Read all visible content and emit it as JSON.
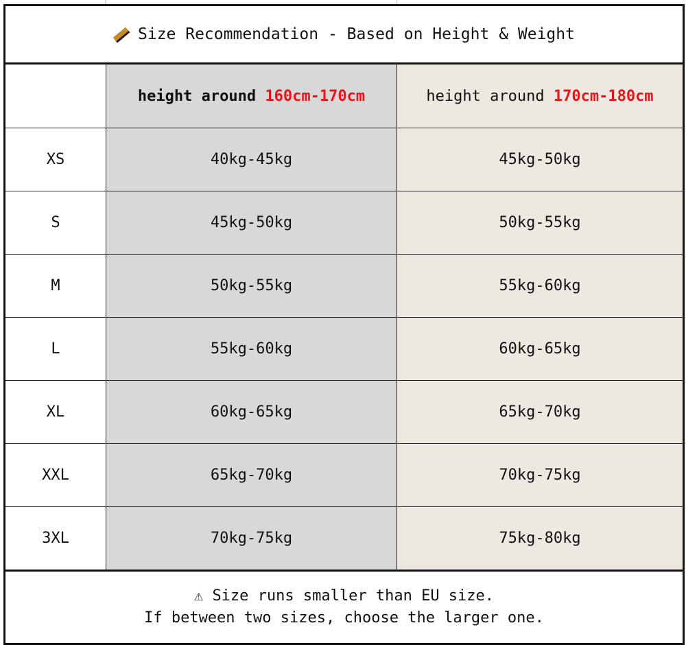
{
  "title": {
    "icon": "ruler-icon",
    "text": "Size Recommendation - Based on Height & Weight"
  },
  "columns": [
    {
      "prefix": "height around ",
      "range": "160cm-170cm",
      "background": "#d8d8d8"
    },
    {
      "prefix": "height around ",
      "range": "170cm-180cm",
      "background": "#ede9e1"
    }
  ],
  "accent_color": "#e8141a",
  "rows": [
    {
      "size": "XS",
      "a": "40kg-45kg",
      "b": "45kg-50kg"
    },
    {
      "size": "S",
      "a": "45kg-50kg",
      "b": "50kg-55kg"
    },
    {
      "size": "M",
      "a": "50kg-55kg",
      "b": "55kg-60kg"
    },
    {
      "size": "L",
      "a": "55kg-60kg",
      "b": "60kg-65kg"
    },
    {
      "size": "XL",
      "a": "60kg-65kg",
      "b": "65kg-70kg"
    },
    {
      "size": "XXL",
      "a": "65kg-70kg",
      "b": "70kg-75kg"
    },
    {
      "size": "3XL",
      "a": "70kg-75kg",
      "b": "75kg-80kg"
    }
  ],
  "footer": {
    "icon": "warning-icon",
    "glyph": "⚠",
    "line1": "Size runs smaller than EU size.",
    "line2": "If between two sizes, choose the larger one."
  }
}
